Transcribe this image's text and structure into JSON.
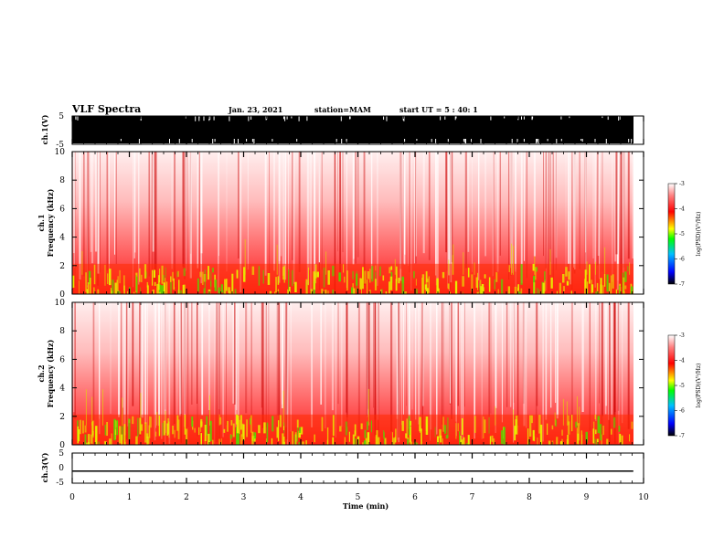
{
  "header": {
    "title": "VLF Spectra",
    "date": "Jan. 23, 2021",
    "station": "station=MAM",
    "start": "start UT =  5 : 40: 1"
  },
  "chart_data": [
    {
      "type": "line",
      "panel": "ch1-waveform",
      "ylabel": "ch.1(V)",
      "ylim": [
        -5,
        5
      ],
      "yticks": [
        "5",
        "-5"
      ],
      "xlim": [
        0,
        10
      ],
      "data_end_min": 9.82,
      "description_of_signal": "saturated full-scale waveform"
    },
    {
      "type": "heatmap",
      "panel": "ch1-spectrogram",
      "ylabel": "ch.1\nFrequency (kHz)",
      "xlim": [
        0,
        10
      ],
      "ylim": [
        0,
        10
      ],
      "yticks": [
        "0",
        "2",
        "4",
        "6",
        "8",
        "10"
      ],
      "colorbar": {
        "label": "log(PSD)(V²/Hz)",
        "range": [
          -7,
          -3
        ],
        "ticks": [
          "-3",
          "-4",
          "-5",
          "-6",
          "-7"
        ]
      },
      "band_khz": [
        0,
        2
      ]
    },
    {
      "type": "heatmap",
      "panel": "ch2-spectrogram",
      "ylabel": "ch.2\nFrequency (kHz)",
      "xlim": [
        0,
        10
      ],
      "ylim": [
        0,
        10
      ],
      "yticks": [
        "0",
        "2",
        "4",
        "6",
        "8",
        "10"
      ],
      "colorbar": {
        "label": "log(PSD)(V²/Hz)",
        "range": [
          -7,
          -3
        ],
        "ticks": [
          "-3",
          "-4",
          "-5",
          "-6",
          "-7"
        ]
      },
      "band_khz": [
        0,
        2
      ]
    },
    {
      "type": "line",
      "panel": "ch3-waveform",
      "ylabel": "ch.3(V)",
      "ylim": [
        -5,
        5
      ],
      "yticks": [
        "5",
        "0",
        "-5"
      ],
      "xlim": [
        0,
        10
      ],
      "data_end_min": 9.82,
      "constant_value_v": -1
    }
  ],
  "xaxis": {
    "label": "Time (min)",
    "ticks": [
      "0",
      "1",
      "2",
      "3",
      "4",
      "5",
      "6",
      "7",
      "8",
      "9",
      "10"
    ]
  },
  "colors": {
    "spectrogram_background": "#ff3333",
    "spectrogram_band": "#e8f000",
    "waveform": "#000000",
    "colorbar": [
      "#000000",
      "#0000ff",
      "#00c0ff",
      "#00ff00",
      "#ffff00",
      "#ff0000",
      "#ffffff"
    ]
  }
}
